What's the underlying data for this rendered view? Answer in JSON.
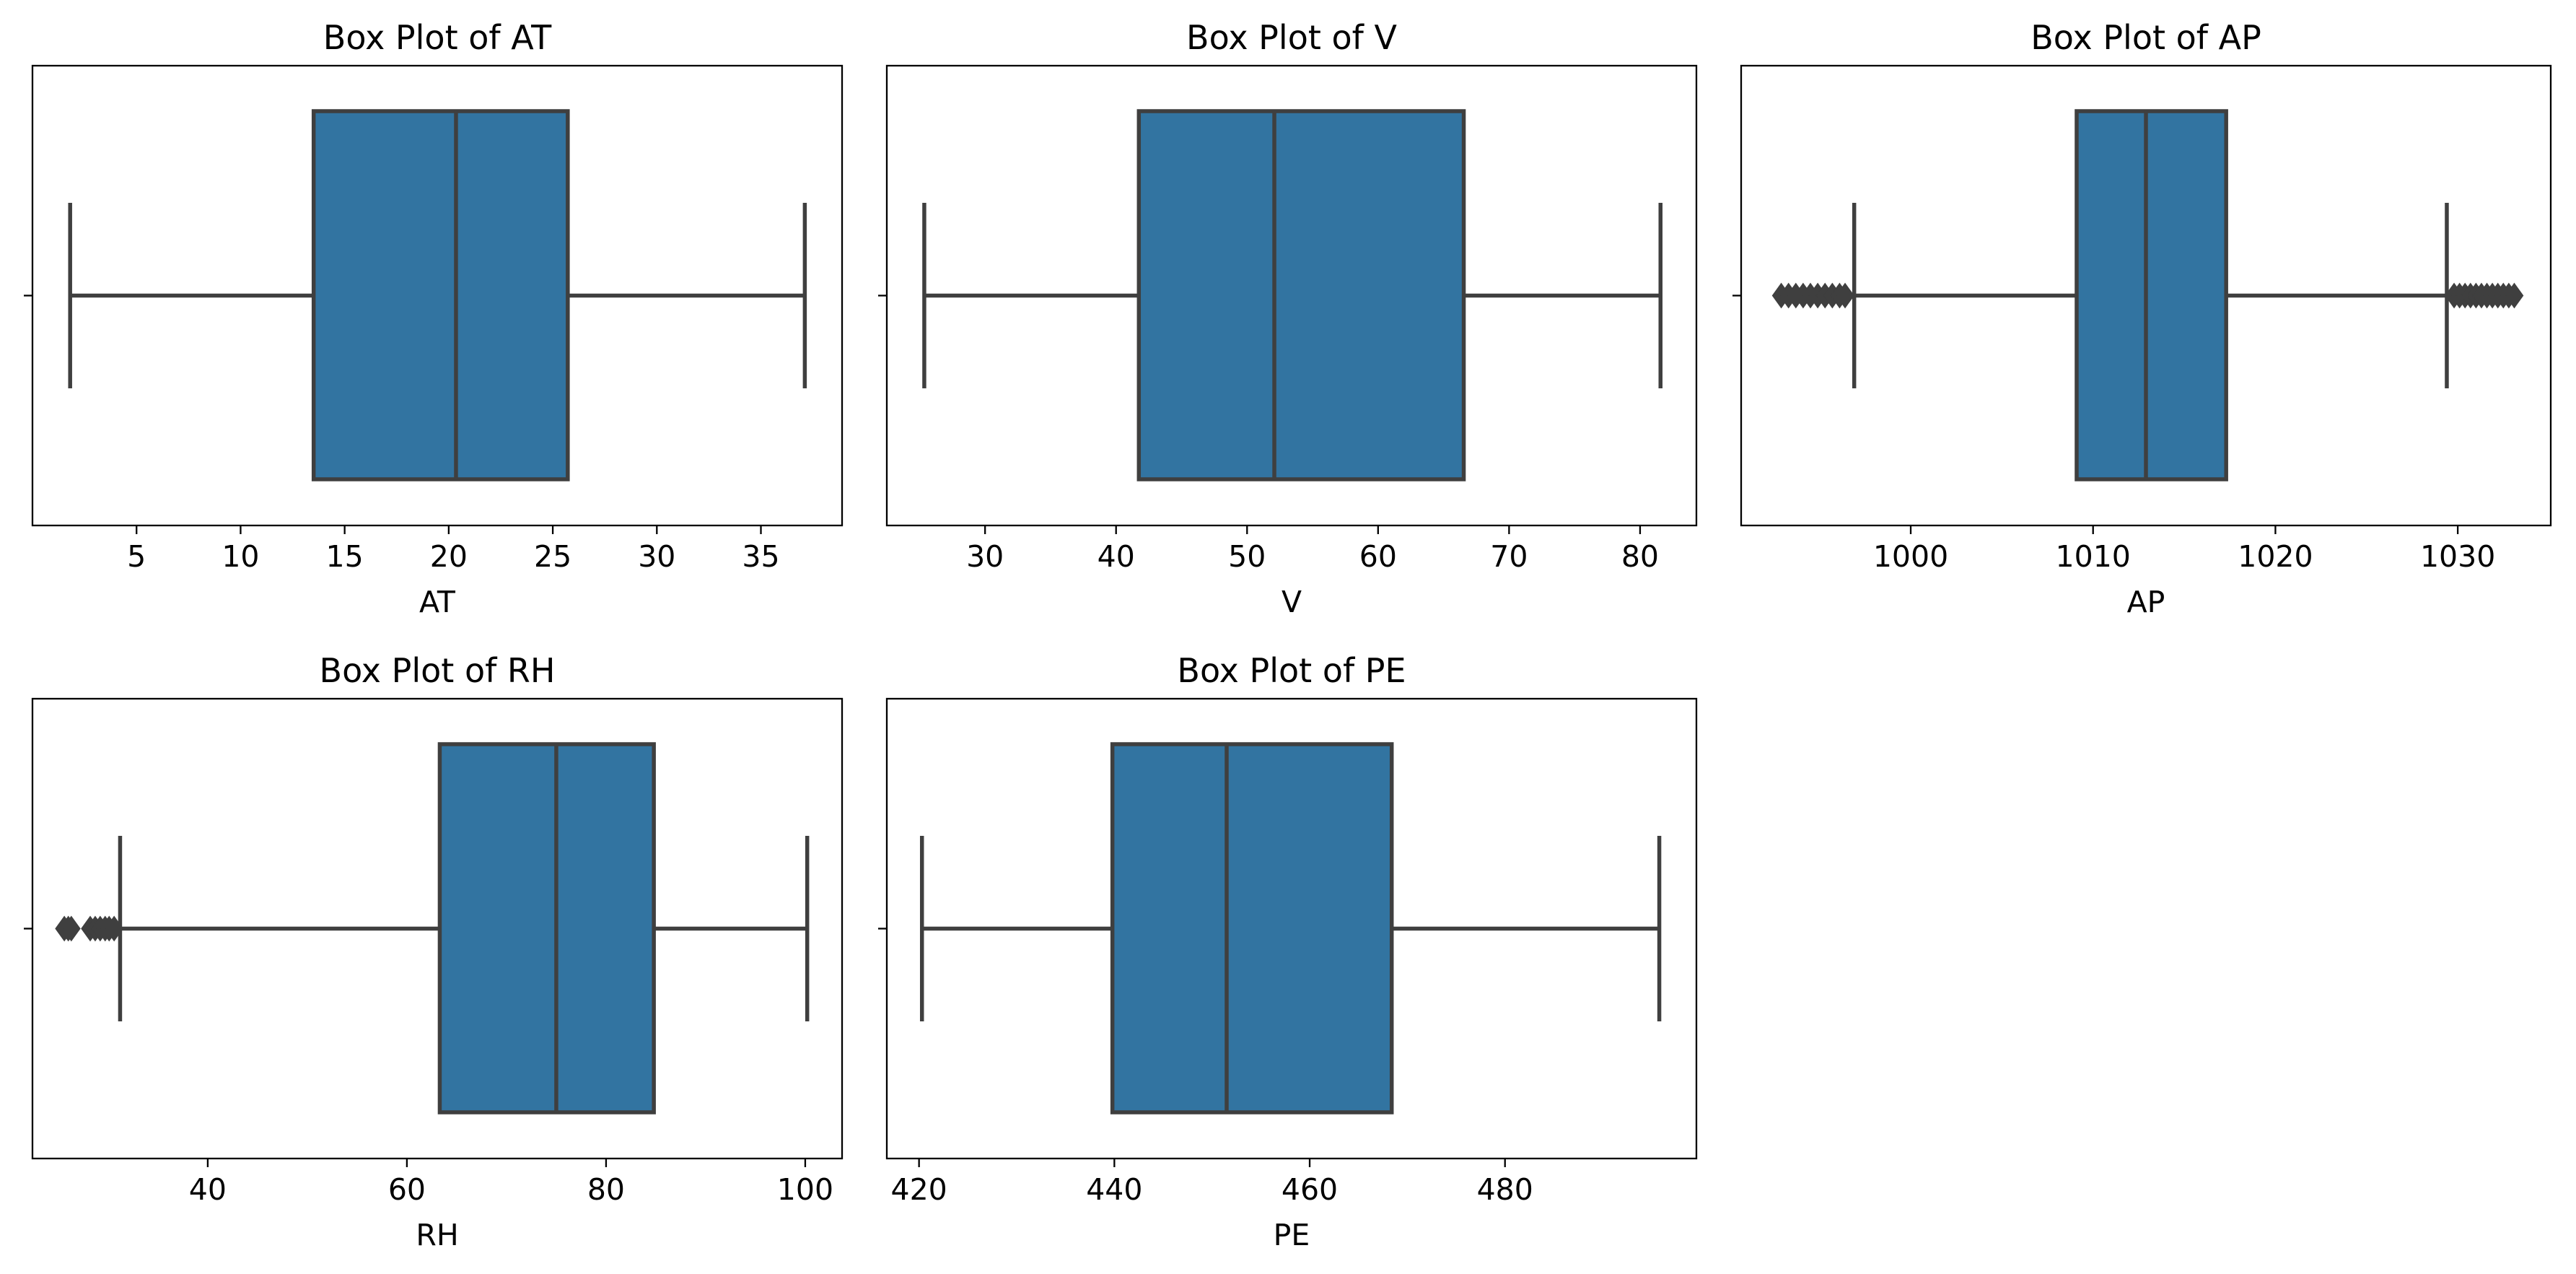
{
  "colors": {
    "box_fill": "#3274a1",
    "line": "#3f3f3f",
    "frame": "#000000",
    "background": "#ffffff"
  },
  "chart_data": [
    {
      "type": "box",
      "title": "Box Plot of AT",
      "xlabel": "AT",
      "ylabel": "",
      "xlim": [
        0,
        38.9
      ],
      "xticks": [
        5,
        10,
        15,
        20,
        25,
        30,
        35
      ],
      "grid": false,
      "stats": {
        "whisker_low": 1.81,
        "q1": 13.51,
        "median": 20.35,
        "q3": 25.72,
        "whisker_high": 37.11
      },
      "outliers": []
    },
    {
      "type": "box",
      "title": "Box Plot of V",
      "xlabel": "V",
      "ylabel": "",
      "xlim": [
        22.5,
        84.3
      ],
      "xticks": [
        30,
        40,
        50,
        60,
        70,
        80
      ],
      "grid": false,
      "stats": {
        "whisker_low": 25.36,
        "q1": 41.74,
        "median": 52.08,
        "q3": 66.54,
        "whisker_high": 81.56
      },
      "outliers": []
    },
    {
      "type": "box",
      "title": "Box Plot of AP",
      "xlabel": "AP",
      "ylabel": "",
      "xlim": [
        990.7,
        1035.1
      ],
      "xticks": [
        1000,
        1010,
        1020,
        1030
      ],
      "grid": false,
      "stats": {
        "whisker_low": 996.9,
        "q1": 1009.1,
        "median": 1012.9,
        "q3": 1017.3,
        "whisker_high": 1029.4
      },
      "outliers": [
        992.9,
        993.3,
        993.7,
        994.1,
        994.5,
        994.9,
        995.3,
        995.7,
        996.1,
        996.4,
        1029.8,
        1030.1,
        1030.4,
        1030.7,
        1031.0,
        1031.3,
        1031.6,
        1031.9,
        1032.2,
        1032.5,
        1032.8,
        1033.1
      ]
    },
    {
      "type": "box",
      "title": "Box Plot of RH",
      "xlabel": "RH",
      "ylabel": "",
      "xlim": [
        22.4,
        103.7
      ],
      "xticks": [
        40,
        60,
        80,
        100
      ],
      "grid": false,
      "stats": {
        "whisker_low": 31.2,
        "q1": 63.3,
        "median": 75.0,
        "q3": 84.8,
        "whisker_high": 100.2
      },
      "outliers": [
        25.6,
        26.0,
        26.3,
        28.2,
        28.7,
        29.2,
        29.7,
        30.1,
        30.6
      ]
    },
    {
      "type": "box",
      "title": "Box Plot of PE",
      "xlabel": "PE",
      "ylabel": "",
      "xlim": [
        416.7,
        499.6
      ],
      "xticks": [
        420,
        440,
        460,
        480
      ],
      "grid": false,
      "stats": {
        "whisker_low": 420.3,
        "q1": 439.8,
        "median": 451.5,
        "q3": 468.4,
        "whisker_high": 495.8
      },
      "outliers": []
    }
  ]
}
